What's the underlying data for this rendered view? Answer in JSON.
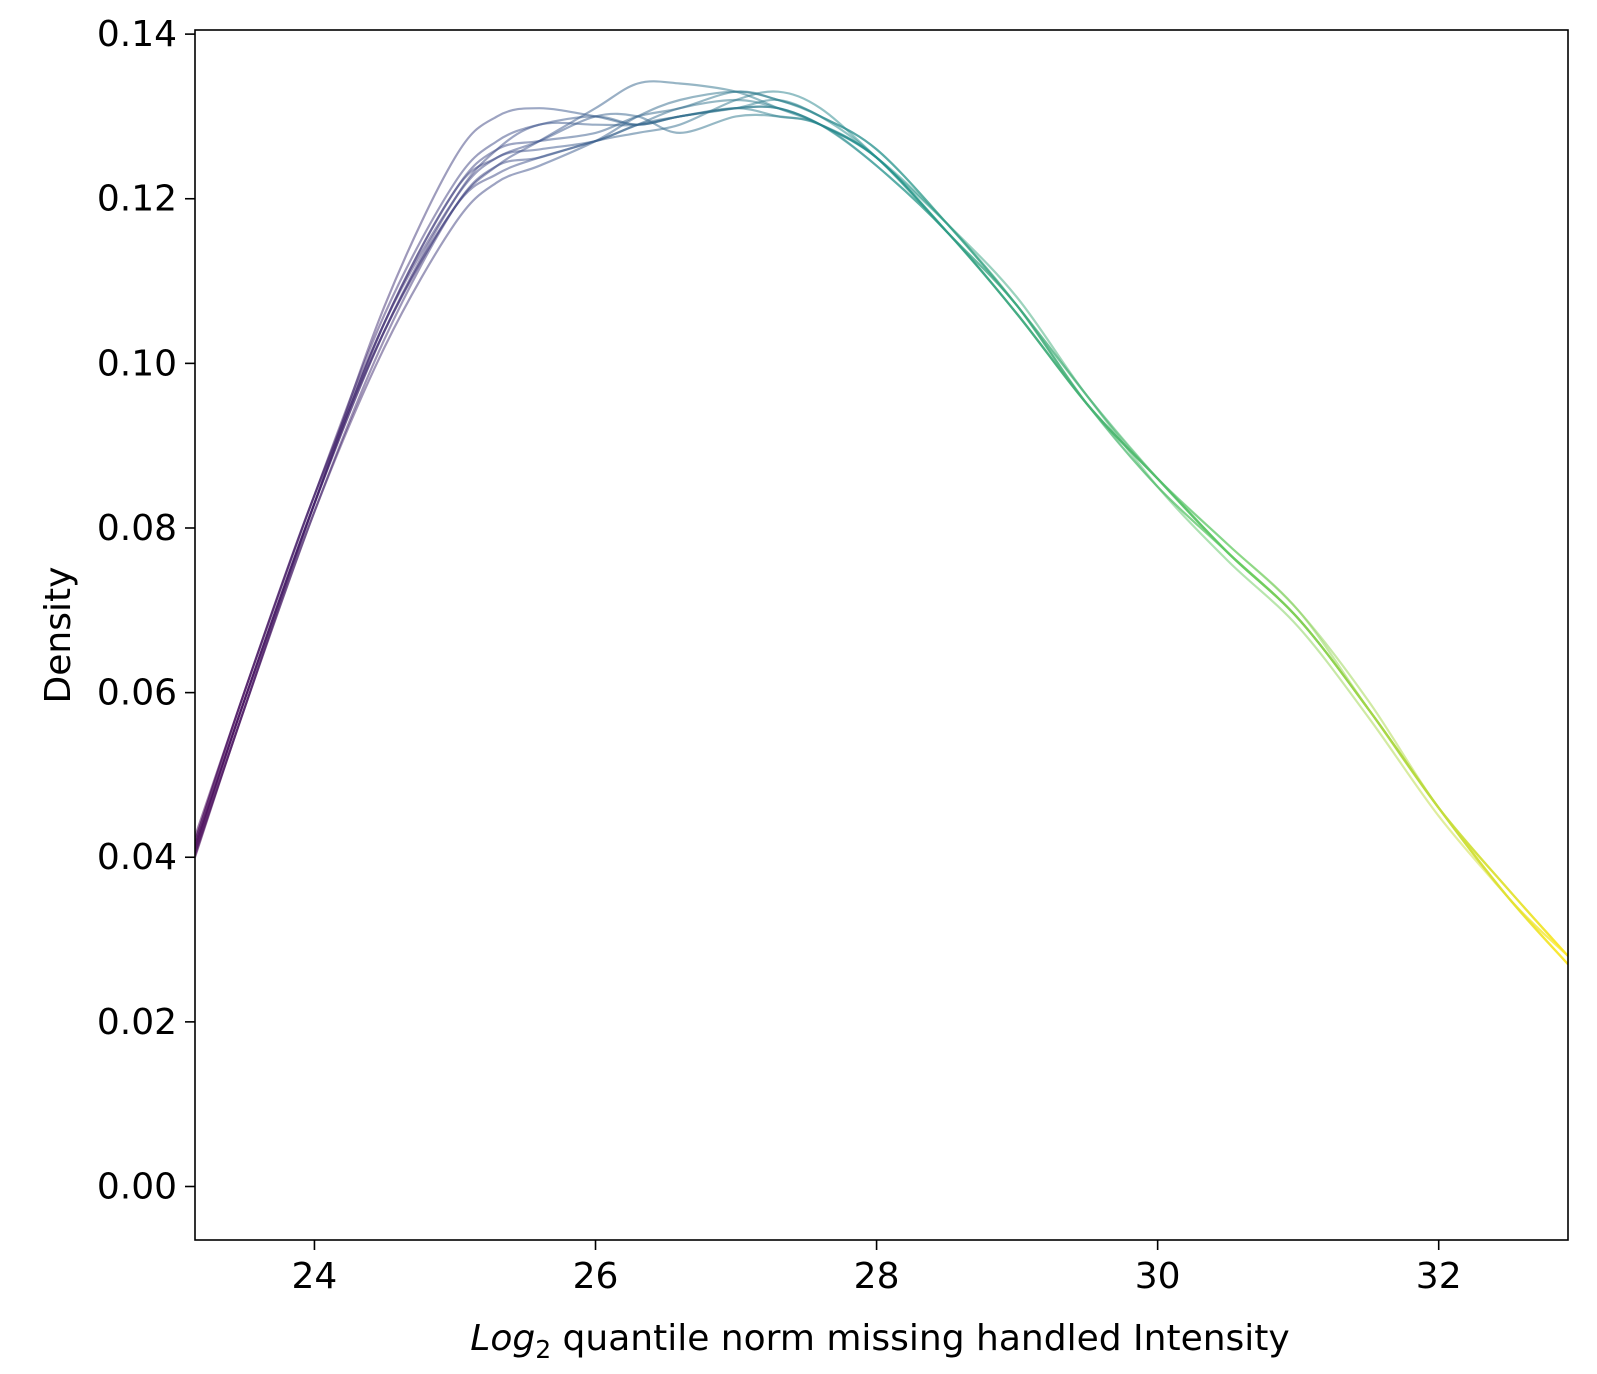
{
  "chart_data": {
    "type": "line",
    "title": "",
    "xlabel_prefix": "Log",
    "xlabel_sub": "2",
    "xlabel_rest": " quantile norm missing handled Intensity",
    "ylabel": "Density",
    "xlim": [
      23.15,
      32.92
    ],
    "ylim": [
      -0.0065,
      0.1405
    ],
    "xticks": [
      24,
      26,
      28,
      30,
      32
    ],
    "yticks": [
      0.0,
      0.02,
      0.04,
      0.06,
      0.08,
      0.1,
      0.12,
      0.14
    ],
    "xtick_labels": [
      "24",
      "26",
      "28",
      "30",
      "32"
    ],
    "ytick_labels": [
      "0.00",
      "0.02",
      "0.04",
      "0.06",
      "0.08",
      "0.10",
      "0.12",
      "0.14"
    ],
    "colormap": "viridis",
    "colormap_stops": [
      "#440154",
      "#3b528b",
      "#21918c",
      "#5ec962",
      "#fde725"
    ],
    "line_alpha": 0.5,
    "grid": false,
    "legend": "none",
    "x": [
      23.15,
      23.5,
      24.0,
      24.5,
      25.0,
      25.3,
      25.6,
      26.0,
      26.3,
      26.6,
      27.0,
      27.3,
      27.6,
      28.0,
      28.5,
      29.0,
      29.5,
      30.0,
      30.5,
      31.0,
      31.5,
      32.0,
      32.5,
      32.92
    ],
    "series": [
      {
        "values": [
          0.0425,
          0.06,
          0.084,
          0.106,
          0.122,
          0.127,
          0.129,
          0.13,
          0.129,
          0.13,
          0.131,
          0.131,
          0.129,
          0.125,
          0.116,
          0.106,
          0.095,
          0.085,
          0.077,
          0.069,
          0.058,
          0.046,
          0.035,
          0.028
        ]
      },
      {
        "values": [
          0.0415,
          0.059,
          0.083,
          0.107,
          0.125,
          0.13,
          0.131,
          0.13,
          0.129,
          0.13,
          0.131,
          0.13,
          0.129,
          0.124,
          0.116,
          0.106,
          0.095,
          0.086,
          0.077,
          0.069,
          0.058,
          0.046,
          0.036,
          0.028
        ]
      },
      {
        "values": [
          0.0405,
          0.058,
          0.083,
          0.105,
          0.121,
          0.126,
          0.127,
          0.128,
          0.13,
          0.131,
          0.133,
          0.132,
          0.13,
          0.125,
          0.116,
          0.107,
          0.095,
          0.085,
          0.077,
          0.069,
          0.058,
          0.046,
          0.035,
          0.027
        ]
      },
      {
        "values": [
          0.042,
          0.06,
          0.084,
          0.105,
          0.12,
          0.125,
          0.126,
          0.127,
          0.129,
          0.13,
          0.131,
          0.131,
          0.129,
          0.125,
          0.117,
          0.107,
          0.095,
          0.086,
          0.077,
          0.069,
          0.058,
          0.046,
          0.036,
          0.028
        ]
      },
      {
        "values": [
          0.041,
          0.059,
          0.083,
          0.104,
          0.119,
          0.123,
          0.125,
          0.127,
          0.129,
          0.131,
          0.132,
          0.131,
          0.129,
          0.124,
          0.116,
          0.106,
          0.095,
          0.086,
          0.077,
          0.069,
          0.058,
          0.046,
          0.035,
          0.028
        ]
      },
      {
        "values": [
          0.04,
          0.058,
          0.082,
          0.102,
          0.117,
          0.122,
          0.124,
          0.127,
          0.13,
          0.132,
          0.133,
          0.132,
          0.13,
          0.126,
          0.117,
          0.107,
          0.096,
          0.086,
          0.077,
          0.069,
          0.058,
          0.046,
          0.035,
          0.027
        ]
      },
      {
        "values": [
          0.0418,
          0.06,
          0.084,
          0.104,
          0.119,
          0.124,
          0.127,
          0.131,
          0.134,
          0.134,
          0.133,
          0.131,
          0.129,
          0.125,
          0.116,
          0.106,
          0.095,
          0.086,
          0.078,
          0.07,
          0.058,
          0.046,
          0.036,
          0.028
        ]
      },
      {
        "values": [
          0.0412,
          0.059,
          0.083,
          0.105,
          0.121,
          0.125,
          0.127,
          0.13,
          0.13,
          0.128,
          0.13,
          0.13,
          0.129,
          0.125,
          0.116,
          0.107,
          0.095,
          0.086,
          0.077,
          0.069,
          0.058,
          0.046,
          0.035,
          0.027
        ]
      },
      {
        "values": [
          0.0402,
          0.058,
          0.082,
          0.103,
          0.119,
          0.124,
          0.125,
          0.127,
          0.128,
          0.129,
          0.132,
          0.133,
          0.131,
          0.125,
          0.117,
          0.108,
          0.096,
          0.086,
          0.078,
          0.07,
          0.059,
          0.046,
          0.036,
          0.028
        ]
      },
      {
        "values": [
          0.0408,
          0.059,
          0.083,
          0.104,
          0.12,
          0.126,
          0.129,
          0.129,
          0.129,
          0.13,
          0.131,
          0.132,
          0.13,
          0.126,
          0.117,
          0.107,
          0.096,
          0.085,
          0.076,
          0.068,
          0.057,
          0.045,
          0.035,
          0.027
        ]
      }
    ]
  }
}
